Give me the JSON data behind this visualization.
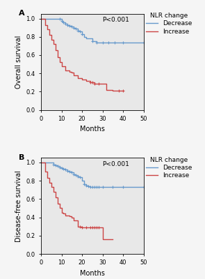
{
  "panel_A": {
    "label": "A",
    "ylabel": "Overall survival",
    "pvalue": "P<0.001",
    "blue": {
      "times": [
        0,
        5,
        8,
        9,
        10,
        11,
        12,
        13,
        14,
        15,
        16,
        17,
        18,
        19,
        20,
        21,
        22,
        25,
        27,
        30,
        33,
        36,
        40,
        50
      ],
      "surv": [
        1.0,
        1.0,
        1.0,
        1.0,
        0.97,
        0.96,
        0.94,
        0.93,
        0.92,
        0.91,
        0.9,
        0.89,
        0.87,
        0.86,
        0.83,
        0.8,
        0.78,
        0.75,
        0.74,
        0.74,
        0.74,
        0.74,
        0.74,
        0.74
      ],
      "censors": [
        9,
        10,
        11,
        12,
        13,
        14,
        15,
        16,
        17,
        18,
        19,
        20,
        25,
        27,
        30,
        33,
        36,
        40,
        50
      ],
      "censor_y": [
        1.0,
        0.97,
        0.96,
        0.94,
        0.93,
        0.92,
        0.91,
        0.9,
        0.89,
        0.87,
        0.86,
        0.83,
        0.75,
        0.74,
        0.74,
        0.74,
        0.74,
        0.74,
        0.74
      ]
    },
    "red": {
      "times": [
        0,
        2,
        3,
        4,
        5,
        6,
        7,
        8,
        9,
        10,
        12,
        14,
        15,
        16,
        18,
        20,
        22,
        24,
        25,
        26,
        28,
        30,
        32,
        35,
        36,
        38,
        40
      ],
      "surv": [
        1.0,
        0.93,
        0.88,
        0.82,
        0.77,
        0.72,
        0.65,
        0.58,
        0.52,
        0.48,
        0.43,
        0.42,
        0.41,
        0.38,
        0.35,
        0.33,
        0.32,
        0.3,
        0.3,
        0.29,
        0.29,
        0.29,
        0.22,
        0.21,
        0.21,
        0.21,
        0.21
      ],
      "censors": [
        24,
        25,
        26,
        28,
        38,
        40
      ],
      "censor_y": [
        0.3,
        0.3,
        0.29,
        0.29,
        0.21,
        0.21
      ]
    }
  },
  "panel_B": {
    "label": "B",
    "ylabel": "Disease-free survival",
    "pvalue": "P<0.001",
    "blue": {
      "times": [
        0,
        3,
        5,
        6,
        7,
        8,
        9,
        10,
        11,
        12,
        13,
        14,
        15,
        16,
        17,
        18,
        19,
        20,
        21,
        22,
        23,
        24,
        25,
        26,
        27,
        28,
        30,
        35,
        40,
        50
      ],
      "surv": [
        1.0,
        1.0,
        1.0,
        0.98,
        0.97,
        0.96,
        0.95,
        0.94,
        0.93,
        0.92,
        0.91,
        0.9,
        0.89,
        0.87,
        0.86,
        0.85,
        0.84,
        0.8,
        0.76,
        0.75,
        0.74,
        0.73,
        0.73,
        0.73,
        0.73,
        0.73,
        0.73,
        0.73,
        0.73,
        0.73
      ],
      "censors": [
        6,
        7,
        8,
        9,
        10,
        11,
        12,
        13,
        14,
        15,
        16,
        17,
        18,
        19,
        21,
        22,
        23,
        24,
        25,
        26,
        27,
        28,
        30,
        35,
        40,
        50
      ],
      "censor_y": [
        0.98,
        0.97,
        0.96,
        0.95,
        0.94,
        0.93,
        0.92,
        0.91,
        0.9,
        0.89,
        0.87,
        0.86,
        0.85,
        0.84,
        0.76,
        0.75,
        0.74,
        0.73,
        0.73,
        0.73,
        0.73,
        0.73,
        0.73,
        0.73,
        0.73,
        0.73
      ]
    },
    "red": {
      "times": [
        0,
        2,
        3,
        4,
        5,
        6,
        7,
        8,
        9,
        10,
        11,
        12,
        14,
        15,
        16,
        18,
        19,
        20,
        22,
        24,
        25,
        26,
        27,
        28,
        30,
        32,
        35
      ],
      "surv": [
        1.0,
        0.9,
        0.83,
        0.78,
        0.73,
        0.68,
        0.62,
        0.55,
        0.5,
        0.45,
        0.44,
        0.42,
        0.41,
        0.4,
        0.37,
        0.3,
        0.3,
        0.29,
        0.29,
        0.29,
        0.29,
        0.29,
        0.29,
        0.29,
        0.16,
        0.16,
        0.16
      ],
      "censors": [
        19,
        20,
        22,
        24,
        25,
        26,
        27,
        28
      ],
      "censor_y": [
        0.3,
        0.29,
        0.29,
        0.29,
        0.29,
        0.29,
        0.29,
        0.29
      ]
    }
  },
  "blue_color": "#6699CC",
  "red_color": "#CC4444",
  "xlim": [
    0,
    50
  ],
  "xticks": [
    0,
    10,
    20,
    30,
    40,
    50
  ],
  "ylim": [
    0.0,
    1.05
  ],
  "yticks": [
    0.0,
    0.2,
    0.4,
    0.6,
    0.8,
    1.0
  ],
  "xlabel": "Months",
  "legend_title": "NLR change",
  "legend_labels": [
    "Decrease",
    "Increase"
  ],
  "plot_bg_color": "#E8E8E8",
  "fig_bg_color": "#F5F5F5"
}
